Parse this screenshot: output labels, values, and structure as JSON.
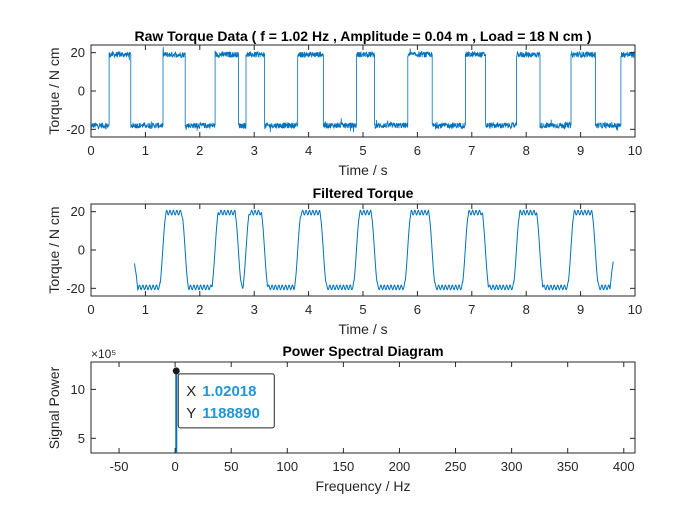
{
  "colors": {
    "series": "#0072bd",
    "axis": "#262626",
    "datatip_value": "#1f97d6"
  },
  "chart_data": [
    {
      "type": "line",
      "title": "Raw Torque Data ( f = 1.02 Hz , Amplitude = 0.04 m , Load = 18 N cm )",
      "xlabel": "Time / s",
      "ylabel": "Torque / N cm",
      "xlim": [
        0,
        10
      ],
      "ylim": [
        -24,
        24
      ],
      "xticks": [
        "0",
        "1",
        "2",
        "3",
        "4",
        "5",
        "6",
        "7",
        "8",
        "9",
        "10"
      ],
      "yticks": [
        "-20",
        "0",
        "20"
      ],
      "grid": false,
      "series": [
        {
          "high_intervals": [
            [
              0.33,
              0.73
            ],
            [
              1.32,
              1.73
            ],
            [
              2.28,
              2.71
            ],
            [
              2.85,
              3.19
            ],
            [
              3.8,
              4.27
            ],
            [
              4.88,
              5.21
            ],
            [
              5.82,
              6.27
            ],
            [
              6.88,
              7.25
            ],
            [
              7.82,
              8.25
            ],
            [
              8.82,
              9.27
            ],
            [
              9.74,
              10.05
            ]
          ],
          "high_level": 19,
          "low_level": -18,
          "noise_amplitude": 3,
          "x_range": [
            0,
            10
          ]
        }
      ]
    },
    {
      "type": "line",
      "title": "Filtered Torque",
      "xlabel": "Time / s",
      "ylabel": "Torque / N cm",
      "xlim": [
        0,
        10
      ],
      "ylim": [
        -24,
        24
      ],
      "xticks": [
        "0",
        "1",
        "2",
        "3",
        "4",
        "5",
        "6",
        "7",
        "8",
        "9",
        "10"
      ],
      "yticks": [
        "-20",
        "0",
        "20"
      ],
      "grid": false,
      "series": [
        {
          "high_intervals": [
            [
              1.32,
              1.73
            ],
            [
              2.28,
              2.71
            ],
            [
              2.85,
              3.19
            ],
            [
              3.8,
              4.27
            ],
            [
              4.88,
              5.21
            ],
            [
              5.82,
              6.27
            ],
            [
              6.88,
              7.25
            ],
            [
              7.82,
              8.25
            ],
            [
              8.82,
              9.27
            ],
            [
              9.74,
              10.05
            ]
          ],
          "high_level": 19.5,
          "low_level": -19.5,
          "x_range": [
            0.8,
            9.6
          ],
          "start_value": -7,
          "end_value": -6
        }
      ]
    },
    {
      "type": "line",
      "title": "Power Spectral Diagram",
      "xlabel": "Frequency / Hz",
      "ylabel": "Signal Power",
      "exponent_label": "×10⁵",
      "xlim": [
        -75,
        410
      ],
      "ylim": [
        3.5,
        12.8
      ],
      "xticks": [
        "-50",
        "0",
        "50",
        "100",
        "150",
        "200",
        "250",
        "300",
        "350",
        "400"
      ],
      "yticks": [
        "5",
        "10"
      ],
      "grid": false,
      "peak": {
        "x": 1.02018,
        "y": 1188890
      },
      "datatip": {
        "x_key": "X",
        "x_value": "1.02018",
        "y_key": "Y",
        "y_value": "1188890"
      }
    }
  ]
}
